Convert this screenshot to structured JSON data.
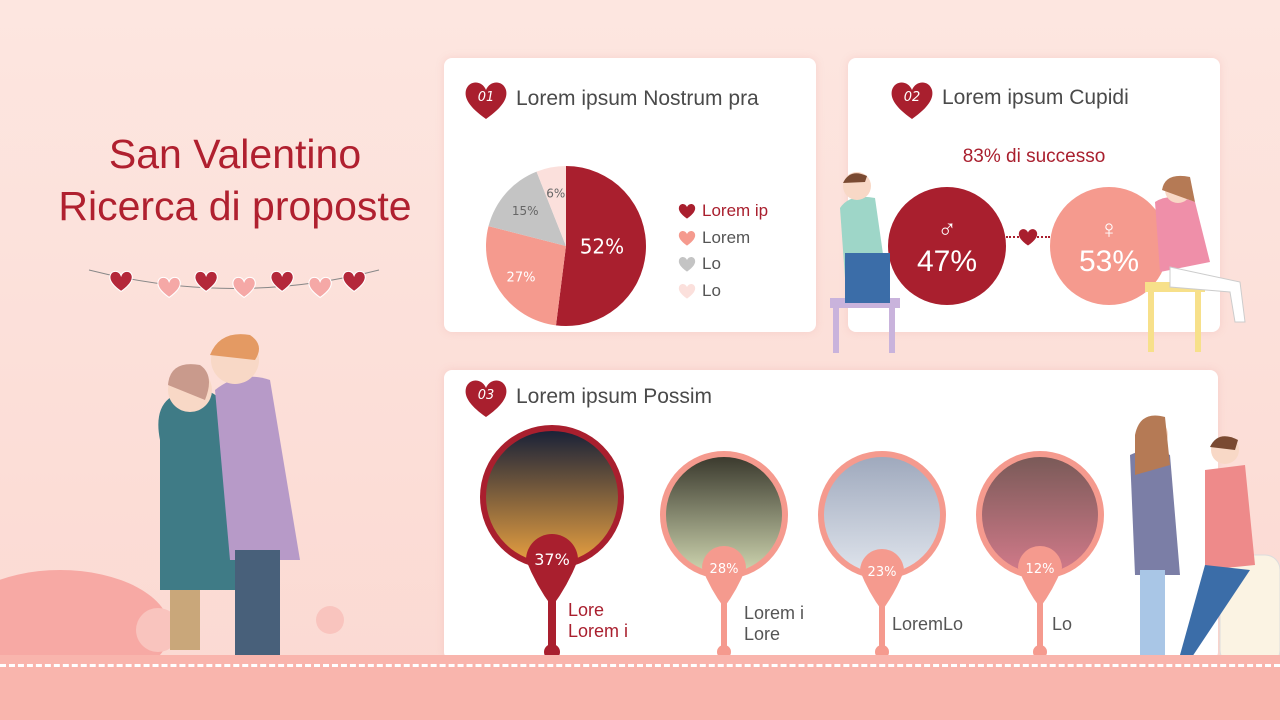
{
  "title": {
    "line1": "San Valentino",
    "line2": "Ricerca di proposte"
  },
  "colors": {
    "dark": "#a91f2e",
    "salmon": "#f59a8e",
    "gray": "#c4c4c4",
    "pale": "#fbe0dc"
  },
  "card1": {
    "num": "01",
    "title": "Lorem ipsum Nostrum pra"
  },
  "chart_data": {
    "type": "pie",
    "values": [
      52,
      27,
      15,
      6
    ],
    "labels": [
      "52%",
      "27%",
      "15%",
      "6%"
    ],
    "legend": [
      "Lorem ip",
      "Lorem",
      "Lo",
      "Lo"
    ],
    "colors": [
      "#a91f2e",
      "#f59a8e",
      "#c4c4c4",
      "#fbe0dc"
    ],
    "legend_placement": "right"
  },
  "card2": {
    "num": "02",
    "title": "Lorem ipsum Cupidi",
    "subtitle": "83% di successo",
    "male": {
      "symbol": "♂",
      "value": "47%"
    },
    "female": {
      "symbol": "♀",
      "value": "53%"
    }
  },
  "card3": {
    "num": "03",
    "title": "Lorem ipsum Possim",
    "items": [
      {
        "value": "37%",
        "l1": "Lore",
        "l2": "Lorem i"
      },
      {
        "value": "28%",
        "l1": "Lorem i",
        "l2": "Lore"
      },
      {
        "value": "23%",
        "l1": "LoremLo",
        "l2": ""
      },
      {
        "value": "12%",
        "l1": "Lo",
        "l2": ""
      }
    ]
  }
}
